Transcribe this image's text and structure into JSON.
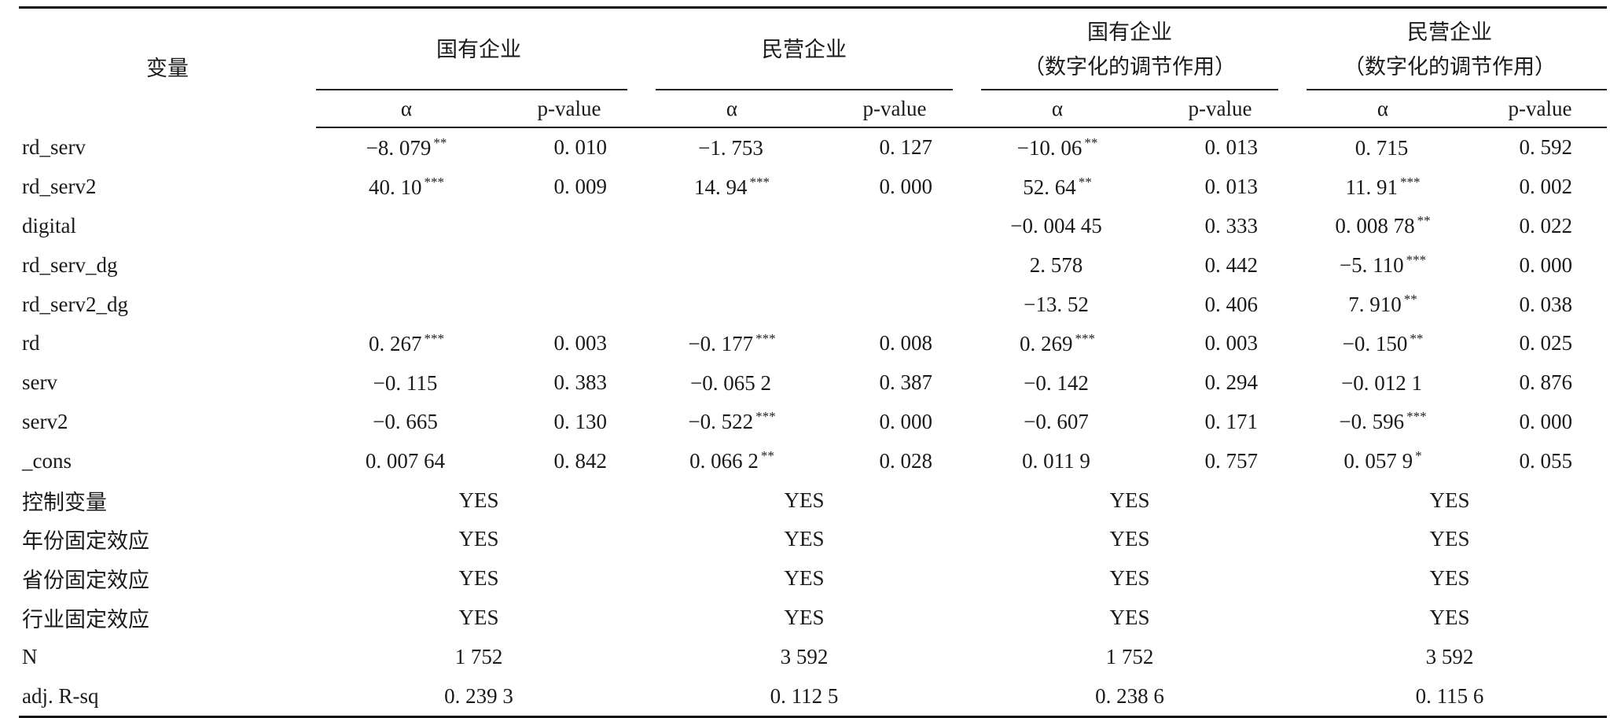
{
  "header": {
    "variable": "变量",
    "groups": [
      {
        "line1": "国有企业",
        "line2": ""
      },
      {
        "line1": "民营企业",
        "line2": ""
      },
      {
        "line1": "国有企业",
        "line2": "（数字化的调节作用）"
      },
      {
        "line1": "民营企业",
        "line2": "（数字化的调节作用）"
      }
    ],
    "alpha_label": "α",
    "p_label": "p-value"
  },
  "rows": [
    {
      "label": "rd_serv",
      "cells": [
        {
          "a": "−8. 079",
          "sig": "**",
          "p": "0. 010"
        },
        {
          "a": "−1. 753",
          "sig": "",
          "p": "0. 127"
        },
        {
          "a": "−10. 06",
          "sig": "**",
          "p": "0. 013"
        },
        {
          "a": "0. 715",
          "sig": "",
          "p": "0. 592"
        }
      ]
    },
    {
      "label": "rd_serv2",
      "cells": [
        {
          "a": "40. 10",
          "sig": "***",
          "p": "0. 009"
        },
        {
          "a": "14. 94",
          "sig": "***",
          "p": "0. 000"
        },
        {
          "a": "52. 64",
          "sig": "**",
          "p": "0. 013"
        },
        {
          "a": "11. 91",
          "sig": "***",
          "p": "0. 002"
        }
      ]
    },
    {
      "label": "digital",
      "cells": [
        {
          "a": "",
          "sig": "",
          "p": ""
        },
        {
          "a": "",
          "sig": "",
          "p": ""
        },
        {
          "a": "−0. 004 45",
          "sig": "",
          "p": "0. 333"
        },
        {
          "a": "0. 008 78",
          "sig": "**",
          "p": "0. 022"
        }
      ]
    },
    {
      "label": "rd_serv_dg",
      "cells": [
        {
          "a": "",
          "sig": "",
          "p": ""
        },
        {
          "a": "",
          "sig": "",
          "p": ""
        },
        {
          "a": "2. 578",
          "sig": "",
          "p": "0. 442"
        },
        {
          "a": "−5. 110",
          "sig": "***",
          "p": "0. 000"
        }
      ]
    },
    {
      "label": "rd_serv2_dg",
      "cells": [
        {
          "a": "",
          "sig": "",
          "p": ""
        },
        {
          "a": "",
          "sig": "",
          "p": ""
        },
        {
          "a": "−13. 52",
          "sig": "",
          "p": "0. 406"
        },
        {
          "a": "7. 910",
          "sig": "**",
          "p": "0. 038"
        }
      ]
    },
    {
      "label": "rd",
      "cells": [
        {
          "a": "0. 267",
          "sig": "***",
          "p": "0. 003"
        },
        {
          "a": "−0. 177",
          "sig": "***",
          "p": "0. 008"
        },
        {
          "a": "0. 269",
          "sig": "***",
          "p": "0. 003"
        },
        {
          "a": "−0. 150",
          "sig": "**",
          "p": "0. 025"
        }
      ]
    },
    {
      "label": "serv",
      "cells": [
        {
          "a": "−0. 115",
          "sig": "",
          "p": "0. 383"
        },
        {
          "a": "−0. 065 2",
          "sig": "",
          "p": "0. 387"
        },
        {
          "a": "−0. 142",
          "sig": "",
          "p": "0. 294"
        },
        {
          "a": "−0. 012 1",
          "sig": "",
          "p": "0. 876"
        }
      ]
    },
    {
      "label": "serv2",
      "cells": [
        {
          "a": "−0. 665",
          "sig": "",
          "p": "0. 130"
        },
        {
          "a": "−0. 522",
          "sig": "***",
          "p": "0. 000"
        },
        {
          "a": "−0. 607",
          "sig": "",
          "p": "0. 171"
        },
        {
          "a": "−0. 596",
          "sig": "***",
          "p": "0. 000"
        }
      ]
    },
    {
      "label": "_cons",
      "cells": [
        {
          "a": "0. 007 64",
          "sig": "",
          "p": "0. 842"
        },
        {
          "a": "0. 066 2",
          "sig": "**",
          "p": "0. 028"
        },
        {
          "a": "0. 011 9",
          "sig": "",
          "p": "0. 757"
        },
        {
          "a": "0. 057 9",
          "sig": "*",
          "p": "0. 055"
        }
      ]
    }
  ],
  "summary_rows": [
    {
      "label": "控制变量",
      "values": [
        "YES",
        "YES",
        "YES",
        "YES"
      ]
    },
    {
      "label": "年份固定效应",
      "values": [
        "YES",
        "YES",
        "YES",
        "YES"
      ]
    },
    {
      "label": "省份固定效应",
      "values": [
        "YES",
        "YES",
        "YES",
        "YES"
      ]
    },
    {
      "label": "行业固定效应",
      "values": [
        "YES",
        "YES",
        "YES",
        "YES"
      ]
    },
    {
      "label": "N",
      "values": [
        "1 752",
        "3 592",
        "1 752",
        "3 592"
      ]
    },
    {
      "label": "adj. R-sq",
      "values": [
        "0. 239 3",
        "0. 112 5",
        "0. 238 6",
        "0. 115 6"
      ]
    }
  ]
}
